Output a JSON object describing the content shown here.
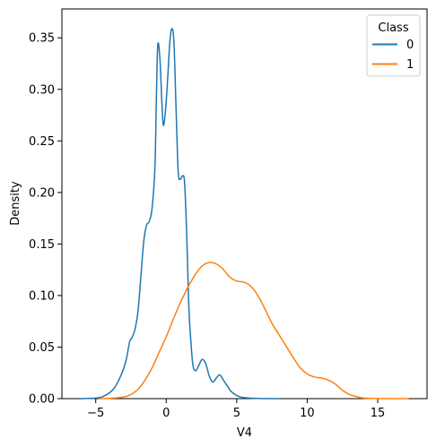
{
  "chart_data": {
    "type": "line",
    "title": "",
    "xlabel": "V4",
    "ylabel": "Density",
    "xlim": [
      -7.4,
      18.5
    ],
    "ylim": [
      0,
      0.378
    ],
    "xticks": [
      -5,
      0,
      5,
      10,
      15
    ],
    "xtick_labels": [
      "−5",
      "0",
      "5",
      "10",
      "15"
    ],
    "yticks": [
      0.0,
      0.05,
      0.1,
      0.15,
      0.2,
      0.25,
      0.3,
      0.35
    ],
    "ytick_labels": [
      "0.00",
      "0.05",
      "0.10",
      "0.15",
      "0.20",
      "0.25",
      "0.30",
      "0.35"
    ],
    "grid": false,
    "legend": {
      "title": "Class",
      "placement": "top-right",
      "entries": [
        "0",
        "1"
      ]
    },
    "series": [
      {
        "name": "0",
        "color": "#1f77b4",
        "points": [
          [
            -6.0,
            0.0
          ],
          [
            -5.0,
            0.0005
          ],
          [
            -4.5,
            0.002
          ],
          [
            -4.0,
            0.006
          ],
          [
            -3.7,
            0.01
          ],
          [
            -3.4,
            0.017
          ],
          [
            -3.2,
            0.023
          ],
          [
            -3.0,
            0.03
          ],
          [
            -2.8,
            0.04
          ],
          [
            -2.6,
            0.055
          ],
          [
            -2.4,
            0.06
          ],
          [
            -2.2,
            0.068
          ],
          [
            -2.0,
            0.085
          ],
          [
            -1.8,
            0.118
          ],
          [
            -1.6,
            0.152
          ],
          [
            -1.4,
            0.168
          ],
          [
            -1.2,
            0.172
          ],
          [
            -1.0,
            0.185
          ],
          [
            -0.8,
            0.225
          ],
          [
            -0.7,
            0.29
          ],
          [
            -0.6,
            0.343
          ],
          [
            -0.45,
            0.33
          ],
          [
            -0.3,
            0.285
          ],
          [
            -0.2,
            0.265
          ],
          [
            -0.05,
            0.28
          ],
          [
            0.1,
            0.31
          ],
          [
            0.25,
            0.345
          ],
          [
            0.4,
            0.359
          ],
          [
            0.55,
            0.345
          ],
          [
            0.7,
            0.28
          ],
          [
            0.85,
            0.22
          ],
          [
            1.0,
            0.213
          ],
          [
            1.15,
            0.216
          ],
          [
            1.3,
            0.21
          ],
          [
            1.45,
            0.16
          ],
          [
            1.6,
            0.09
          ],
          [
            1.75,
            0.055
          ],
          [
            1.9,
            0.032
          ],
          [
            2.1,
            0.027
          ],
          [
            2.3,
            0.032
          ],
          [
            2.55,
            0.038
          ],
          [
            2.8,
            0.034
          ],
          [
            3.05,
            0.022
          ],
          [
            3.3,
            0.016
          ],
          [
            3.55,
            0.02
          ],
          [
            3.8,
            0.023
          ],
          [
            4.05,
            0.018
          ],
          [
            4.3,
            0.013
          ],
          [
            4.6,
            0.007
          ],
          [
            5.0,
            0.003
          ],
          [
            5.5,
            0.001
          ],
          [
            6.5,
            0.0002
          ],
          [
            8.0,
            0.0
          ]
        ]
      },
      {
        "name": "1",
        "color": "#ff7f0e",
        "points": [
          [
            -4.8,
            0.0
          ],
          [
            -4.0,
            0.0003
          ],
          [
            -3.0,
            0.0015
          ],
          [
            -2.5,
            0.004
          ],
          [
            -2.0,
            0.009
          ],
          [
            -1.5,
            0.018
          ],
          [
            -1.0,
            0.03
          ],
          [
            -0.5,
            0.045
          ],
          [
            0.0,
            0.06
          ],
          [
            0.5,
            0.077
          ],
          [
            1.0,
            0.093
          ],
          [
            1.5,
            0.107
          ],
          [
            2.0,
            0.119
          ],
          [
            2.5,
            0.128
          ],
          [
            3.0,
            0.132
          ],
          [
            3.5,
            0.131
          ],
          [
            4.0,
            0.126
          ],
          [
            4.5,
            0.118
          ],
          [
            5.0,
            0.114
          ],
          [
            5.5,
            0.113
          ],
          [
            6.0,
            0.109
          ],
          [
            6.5,
            0.1
          ],
          [
            7.0,
            0.087
          ],
          [
            7.5,
            0.073
          ],
          [
            8.0,
            0.062
          ],
          [
            8.5,
            0.051
          ],
          [
            9.0,
            0.04
          ],
          [
            9.5,
            0.03
          ],
          [
            10.0,
            0.024
          ],
          [
            10.5,
            0.021
          ],
          [
            11.0,
            0.02
          ],
          [
            11.5,
            0.018
          ],
          [
            12.0,
            0.014
          ],
          [
            12.5,
            0.008
          ],
          [
            13.0,
            0.004
          ],
          [
            13.5,
            0.002
          ],
          [
            14.0,
            0.0005
          ],
          [
            15.0,
            0.0001
          ],
          [
            17.2,
            0.0
          ]
        ]
      }
    ]
  }
}
